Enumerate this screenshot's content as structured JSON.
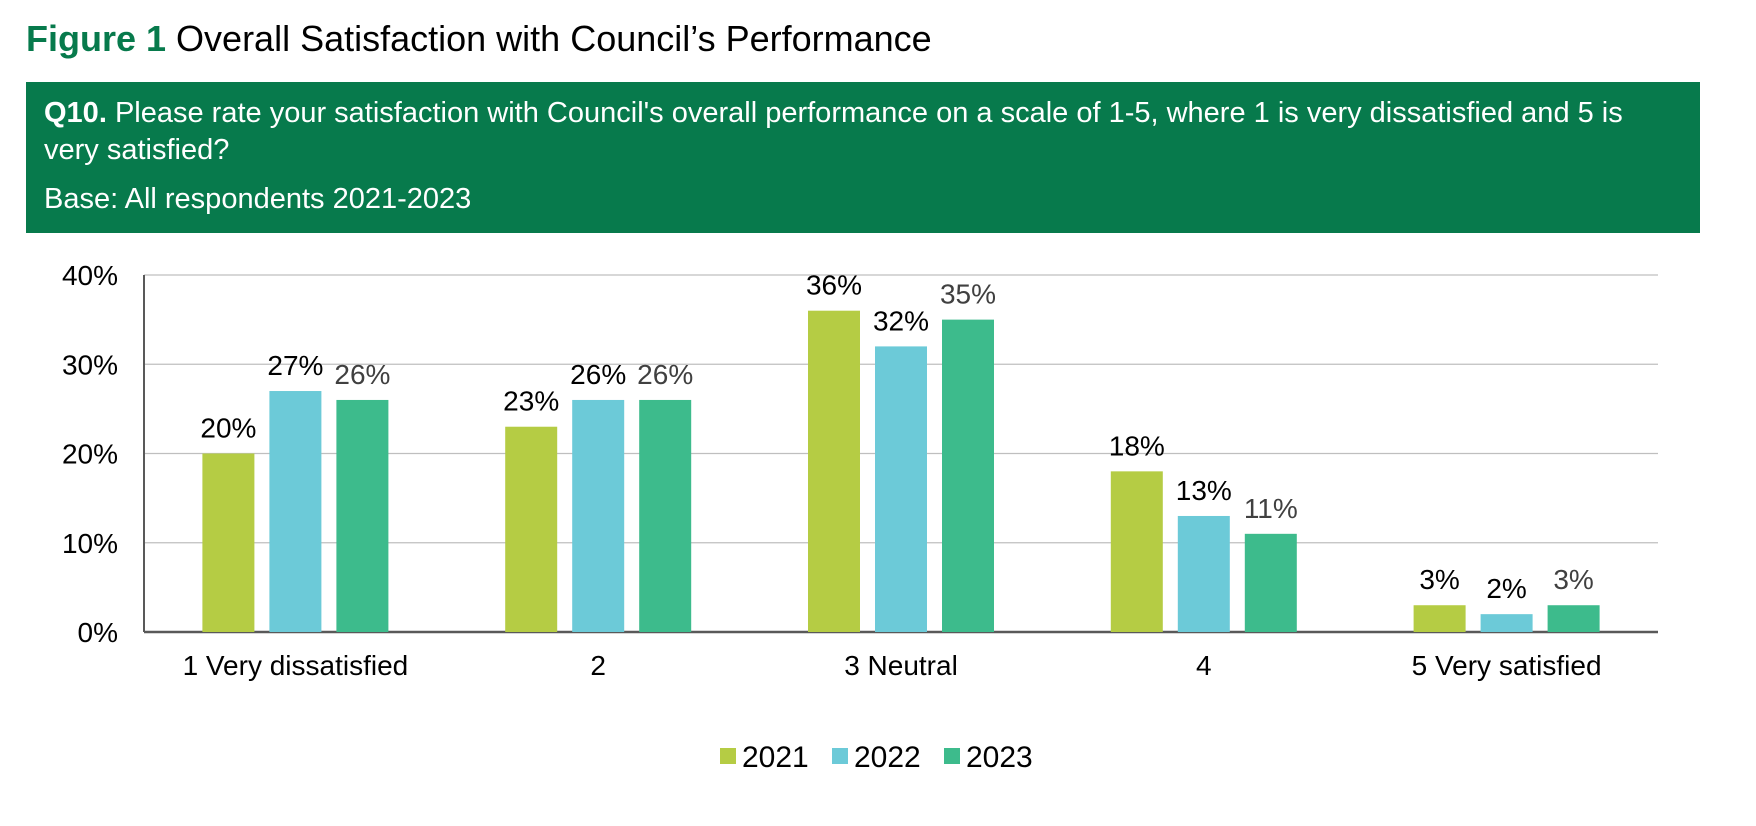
{
  "figure": {
    "number": "Figure 1",
    "title": "Overall Satisfaction with Council’s Performance"
  },
  "question": {
    "code": "Q10.",
    "text": "Please rate your satisfaction with Council's overall performance on a scale of 1-5, where 1 is very dissatisfied and 5 is very satisfied?",
    "base": "Base: All respondents 2021-2023"
  },
  "colors": {
    "header_bg": "#077a4c",
    "figure_label": "#077a4c",
    "series_2021": "#b5cc44",
    "series_2022": "#6ccad8",
    "series_2023": "#3dbb8c"
  },
  "chart_data": {
    "type": "bar",
    "categories": [
      "1 Very dissatisfied",
      "2",
      "3 Neutral",
      "4",
      "5 Very satisfied"
    ],
    "series": [
      {
        "name": "2021",
        "values": [
          20,
          23,
          36,
          18,
          3
        ],
        "color": "#b5cc44"
      },
      {
        "name": "2022",
        "values": [
          27,
          26,
          32,
          13,
          2
        ],
        "color": "#6ccad8"
      },
      {
        "name": "2023",
        "values": [
          26,
          26,
          35,
          11,
          3
        ],
        "color": "#3dbb8c"
      }
    ],
    "y_ticks": [
      "0%",
      "10%",
      "20%",
      "30%",
      "40%"
    ],
    "ylim": [
      0,
      40
    ],
    "y_unit": "%",
    "grid": true,
    "legend_position": "bottom-center",
    "data_labels": true
  }
}
